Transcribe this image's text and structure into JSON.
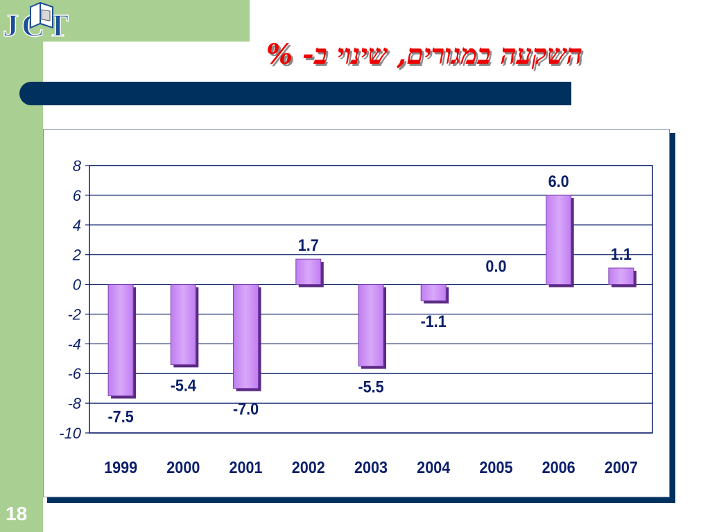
{
  "slide": {
    "title": "השקעה במגורים, שינוי ב- %",
    "logo_text": "JCT",
    "number": "18"
  },
  "colors": {
    "sidebar": "#a9cf92",
    "title": "#ee0000",
    "title_bar": "#00315e",
    "bar_fill": "#c07ef0",
    "bar_dark": "#5a2a82",
    "grid": "#0b1f6b"
  },
  "chart_data": {
    "type": "bar",
    "categories": [
      "1999",
      "2000",
      "2001",
      "2002",
      "2003",
      "2004",
      "2005",
      "2006",
      "2007"
    ],
    "values": [
      -7.5,
      -5.4,
      -7.0,
      1.7,
      -5.5,
      -1.1,
      0.0,
      6.0,
      1.1
    ],
    "data_labels": [
      "-7.5",
      "-5.4",
      "-7.0",
      "1.7",
      "-5.5",
      "-1.1",
      "0.0",
      "6.0",
      "1.1"
    ],
    "y_ticks": [
      "8",
      "6",
      "4",
      "2",
      "0",
      "-2",
      "-4",
      "-6",
      "-8",
      "-10"
    ],
    "ylim": [
      -10,
      8
    ],
    "grid": true,
    "legend": "none"
  }
}
